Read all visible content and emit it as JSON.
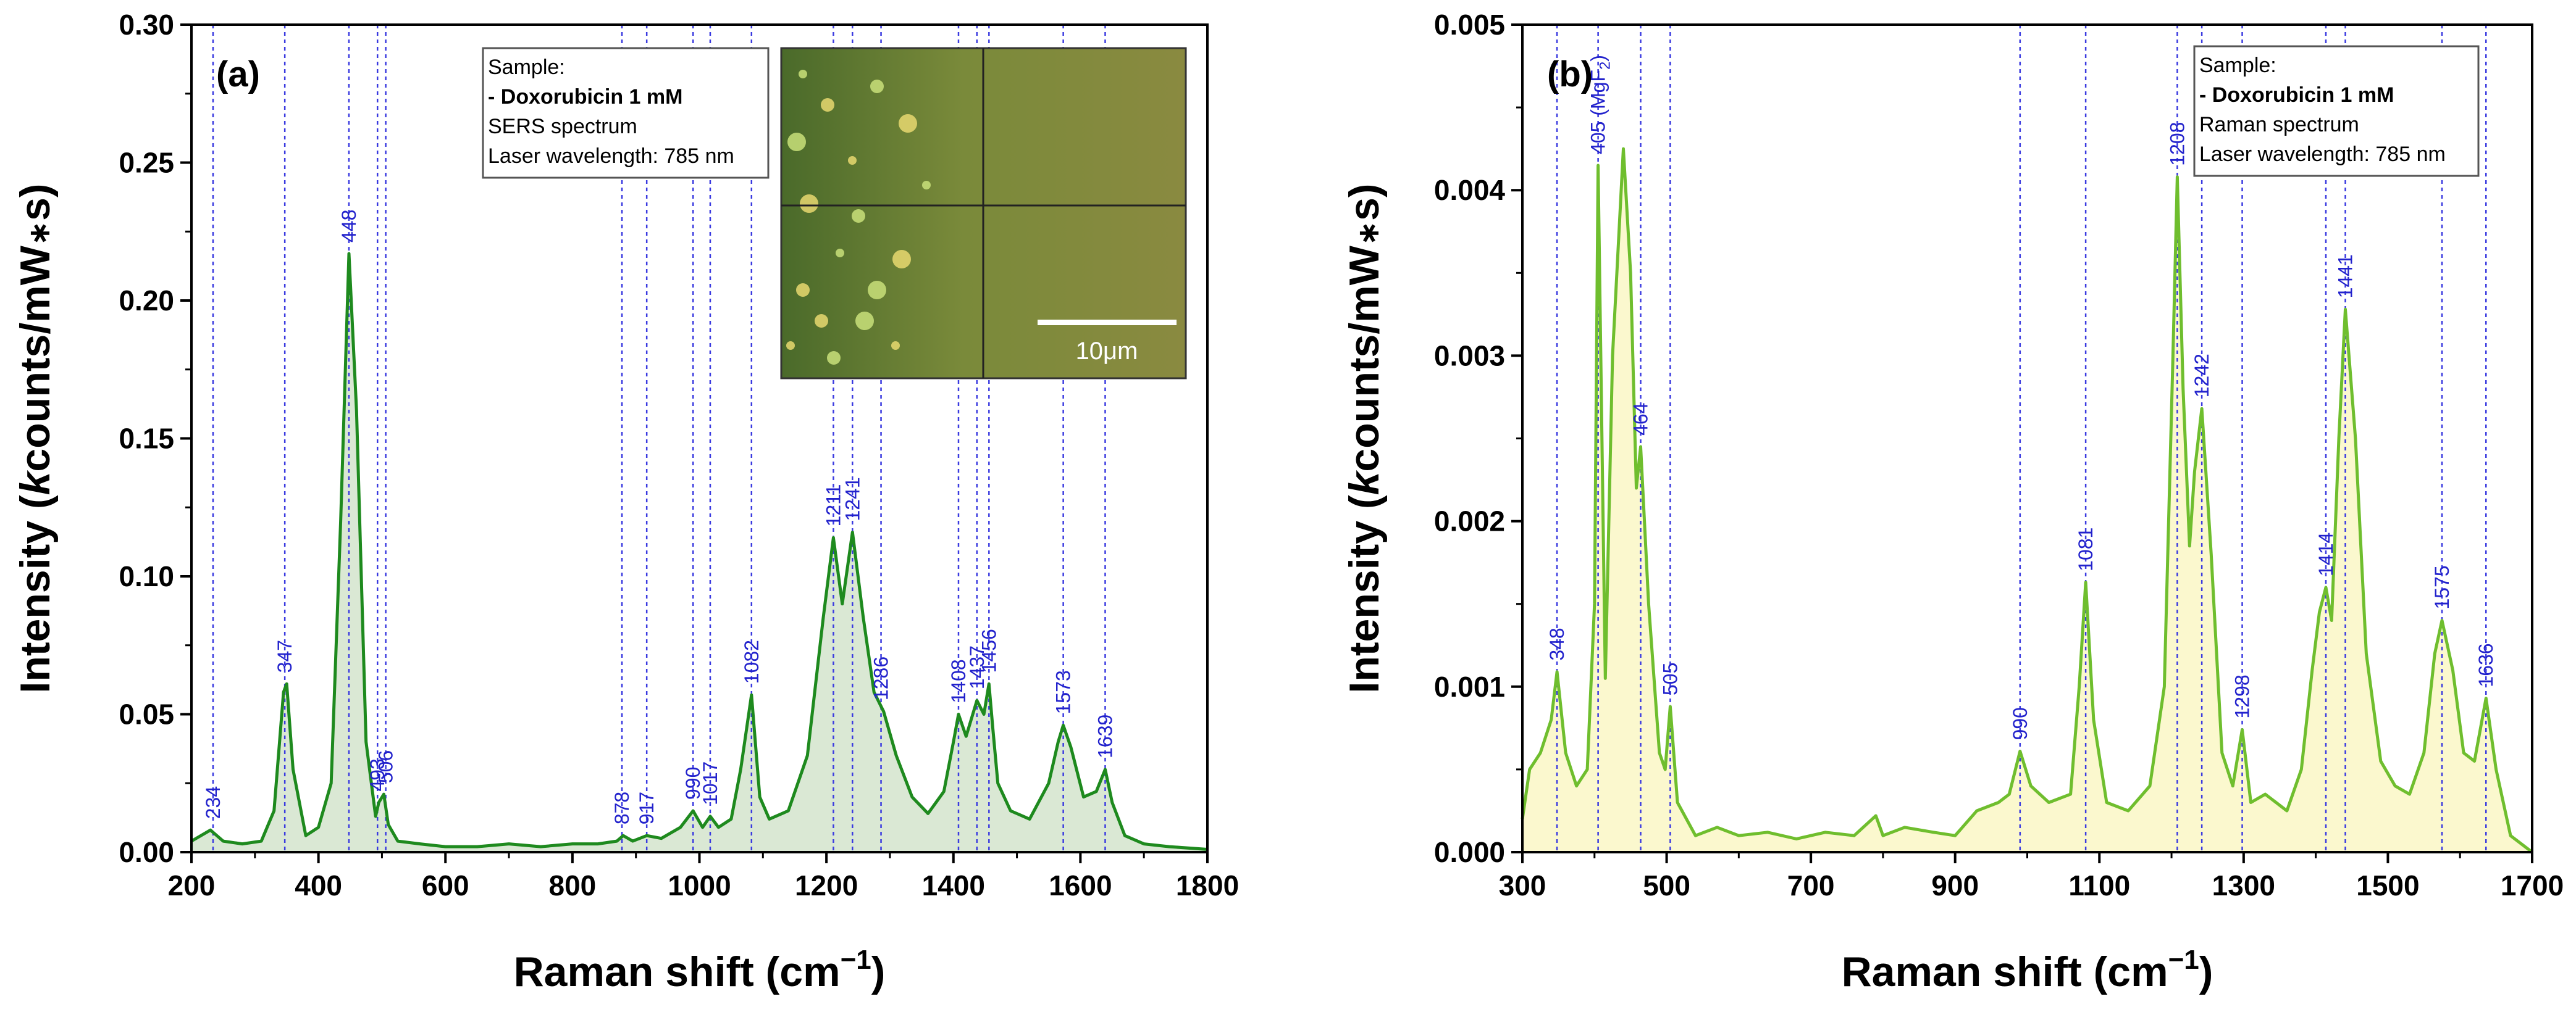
{
  "chart_data": [
    {
      "id": "a",
      "type": "line",
      "panel_label": "(a)",
      "xlabel_main": "Raman shift (cm",
      "xlabel_sup": "−1",
      "xlabel_close": ")",
      "ylabel_pre": "Intensity (",
      "ylabel_italic": "k",
      "ylabel_post": "counts/mW",
      "ylabel_star": "∗",
      "ylabel_end": "s)",
      "xlim": [
        200,
        1800
      ],
      "ylim": [
        0,
        0.3
      ],
      "xticks": [
        200,
        400,
        600,
        800,
        1000,
        1200,
        1400,
        1600,
        1800
      ],
      "yticks": [
        "0.00",
        "0.05",
        "0.10",
        "0.15",
        "0.20",
        "0.25",
        "0.30"
      ],
      "line_color": "#1e8a1e",
      "fill_color": "#d6e6cf",
      "legend": {
        "title": "Sample:",
        "sample": "- Doxorubicin 1 mM",
        "sample_color": "#2a9a2a",
        "type": "SERS spectrum",
        "laser": "Laser wavelength: 785 nm"
      },
      "inset": {
        "scale_bar": "10μm"
      },
      "peaks": [
        {
          "x": 234,
          "label": "234",
          "y": 0.008
        },
        {
          "x": 347,
          "label": "347",
          "y": 0.061
        },
        {
          "x": 448,
          "label": "448",
          "y": 0.217
        },
        {
          "x": 493,
          "label": "493",
          "y": 0.018
        },
        {
          "x": 506,
          "label": "506",
          "y": 0.021
        },
        {
          "x": 878,
          "label": "878",
          "y": 0.006
        },
        {
          "x": 917,
          "label": "917",
          "y": 0.006
        },
        {
          "x": 990,
          "label": "990",
          "y": 0.015
        },
        {
          "x": 1017,
          "label": "1017",
          "y": 0.013
        },
        {
          "x": 1082,
          "label": "1082",
          "y": 0.057
        },
        {
          "x": 1211,
          "label": "1211",
          "y": 0.114
        },
        {
          "x": 1241,
          "label": "1241",
          "y": 0.116
        },
        {
          "x": 1286,
          "label": "1286",
          "y": 0.051
        },
        {
          "x": 1408,
          "label": "1408",
          "y": 0.05
        },
        {
          "x": 1437,
          "label": "1437",
          "y": 0.055
        },
        {
          "x": 1456,
          "label": "1456",
          "y": 0.061
        },
        {
          "x": 1573,
          "label": "1573",
          "y": 0.046
        },
        {
          "x": 1639,
          "label": "1639",
          "y": 0.03
        }
      ],
      "spectrum": {
        "x": [
          200,
          230,
          250,
          280,
          310,
          330,
          345,
          350,
          360,
          380,
          400,
          420,
          435,
          448,
          460,
          475,
          490,
          495,
          503,
          510,
          525,
          560,
          600,
          650,
          700,
          750,
          800,
          840,
          870,
          880,
          895,
          917,
          940,
          970,
          990,
          1005,
          1017,
          1030,
          1050,
          1065,
          1082,
          1095,
          1110,
          1140,
          1170,
          1195,
          1211,
          1225,
          1241,
          1258,
          1275,
          1290,
          1310,
          1335,
          1360,
          1385,
          1400,
          1408,
          1420,
          1437,
          1448,
          1456,
          1462,
          1470,
          1490,
          1520,
          1550,
          1565,
          1573,
          1585,
          1605,
          1625,
          1639,
          1650,
          1670,
          1700,
          1740,
          1800
        ],
        "y": [
          0.004,
          0.008,
          0.004,
          0.003,
          0.004,
          0.015,
          0.058,
          0.061,
          0.03,
          0.006,
          0.009,
          0.025,
          0.12,
          0.217,
          0.16,
          0.04,
          0.013,
          0.018,
          0.021,
          0.01,
          0.004,
          0.003,
          0.002,
          0.002,
          0.003,
          0.002,
          0.003,
          0.003,
          0.004,
          0.006,
          0.004,
          0.006,
          0.005,
          0.009,
          0.015,
          0.009,
          0.013,
          0.009,
          0.012,
          0.03,
          0.057,
          0.02,
          0.012,
          0.015,
          0.035,
          0.085,
          0.114,
          0.09,
          0.116,
          0.085,
          0.058,
          0.051,
          0.035,
          0.02,
          0.014,
          0.022,
          0.04,
          0.05,
          0.042,
          0.055,
          0.05,
          0.061,
          0.045,
          0.025,
          0.015,
          0.012,
          0.025,
          0.04,
          0.046,
          0.038,
          0.02,
          0.022,
          0.03,
          0.018,
          0.006,
          0.003,
          0.002,
          0.001
        ]
      }
    },
    {
      "id": "b",
      "type": "line",
      "panel_label": "(b)",
      "xlabel_main": "Raman shift (cm",
      "xlabel_sup": "−1",
      "xlabel_close": ")",
      "ylabel_pre": "Intensity (",
      "ylabel_italic": "k",
      "ylabel_post": "counts/mW",
      "ylabel_star": "∗",
      "ylabel_end": "s)",
      "xlim": [
        300,
        1700
      ],
      "ylim": [
        0,
        0.005
      ],
      "xticks": [
        300,
        500,
        700,
        900,
        1100,
        1300,
        1500,
        1700
      ],
      "yticks": [
        "0.000",
        "0.001",
        "0.002",
        "0.003",
        "0.004",
        "0.005"
      ],
      "line_color": "#6fbe2e",
      "fill_color": "#fbf7c9",
      "legend": {
        "title": "Sample:",
        "sample": "- Doxorubicin 1 mM",
        "sample_color": "#6fbe2e",
        "type": "Raman spectrum",
        "laser": "Laser wavelength: 785 nm"
      },
      "peaks": [
        {
          "x": 348,
          "label": "348",
          "y": 0.00109
        },
        {
          "x": 405,
          "label": "405 (MgF",
          "sub": "2",
          "close": ")",
          "y": 0.00415
        },
        {
          "x": 464,
          "label": "464",
          "y": 0.00245
        },
        {
          "x": 505,
          "label": "505",
          "y": 0.00088
        },
        {
          "x": 990,
          "label": "990",
          "y": 0.00061
        },
        {
          "x": 1081,
          "label": "1081",
          "y": 0.00163
        },
        {
          "x": 1208,
          "label": "1208",
          "y": 0.00408
        },
        {
          "x": 1242,
          "label": "1242",
          "y": 0.00268
        },
        {
          "x": 1298,
          "label": "1298",
          "y": 0.00074
        },
        {
          "x": 1414,
          "label": "1414",
          "y": 0.0016
        },
        {
          "x": 1441,
          "label": "1441",
          "y": 0.00328
        },
        {
          "x": 1575,
          "label": "1575",
          "y": 0.0014
        },
        {
          "x": 1636,
          "label": "1636",
          "y": 0.00093
        }
      ],
      "spectrum": {
        "x": [
          300,
          310,
          325,
          340,
          348,
          360,
          375,
          390,
          400,
          405,
          415,
          425,
          440,
          450,
          458,
          464,
          475,
          490,
          498,
          505,
          515,
          540,
          570,
          600,
          640,
          680,
          720,
          760,
          790,
          800,
          830,
          870,
          900,
          930,
          960,
          975,
          990,
          1005,
          1030,
          1060,
          1072,
          1081,
          1092,
          1110,
          1140,
          1170,
          1190,
          1202,
          1208,
          1216,
          1225,
          1232,
          1242,
          1255,
          1270,
          1285,
          1298,
          1310,
          1330,
          1360,
          1380,
          1395,
          1405,
          1414,
          1422,
          1432,
          1441,
          1455,
          1470,
          1490,
          1510,
          1530,
          1550,
          1565,
          1575,
          1590,
          1605,
          1620,
          1636,
          1650,
          1670,
          1700
        ],
        "y": [
          0.0002,
          0.0005,
          0.0006,
          0.0008,
          0.00109,
          0.0006,
          0.0004,
          0.0005,
          0.0015,
          0.00415,
          0.00105,
          0.003,
          0.00425,
          0.0035,
          0.0022,
          0.00245,
          0.0015,
          0.0006,
          0.0005,
          0.00088,
          0.0003,
          0.0001,
          0.00015,
          0.0001,
          0.00012,
          8e-05,
          0.00012,
          0.0001,
          0.00022,
          0.0001,
          0.00015,
          0.00012,
          0.0001,
          0.00025,
          0.0003,
          0.00035,
          0.00061,
          0.0004,
          0.0003,
          0.00035,
          0.001,
          0.00163,
          0.0008,
          0.0003,
          0.00025,
          0.0004,
          0.001,
          0.003,
          0.00408,
          0.0028,
          0.00185,
          0.0023,
          0.00268,
          0.0018,
          0.0006,
          0.0004,
          0.00074,
          0.0003,
          0.00035,
          0.00025,
          0.0005,
          0.0011,
          0.00145,
          0.0016,
          0.0014,
          0.0025,
          0.00328,
          0.0025,
          0.0012,
          0.00055,
          0.0004,
          0.00035,
          0.0006,
          0.0012,
          0.0014,
          0.0011,
          0.0006,
          0.00055,
          0.00093,
          0.0005,
          0.0001,
          0.0
        ]
      }
    }
  ]
}
